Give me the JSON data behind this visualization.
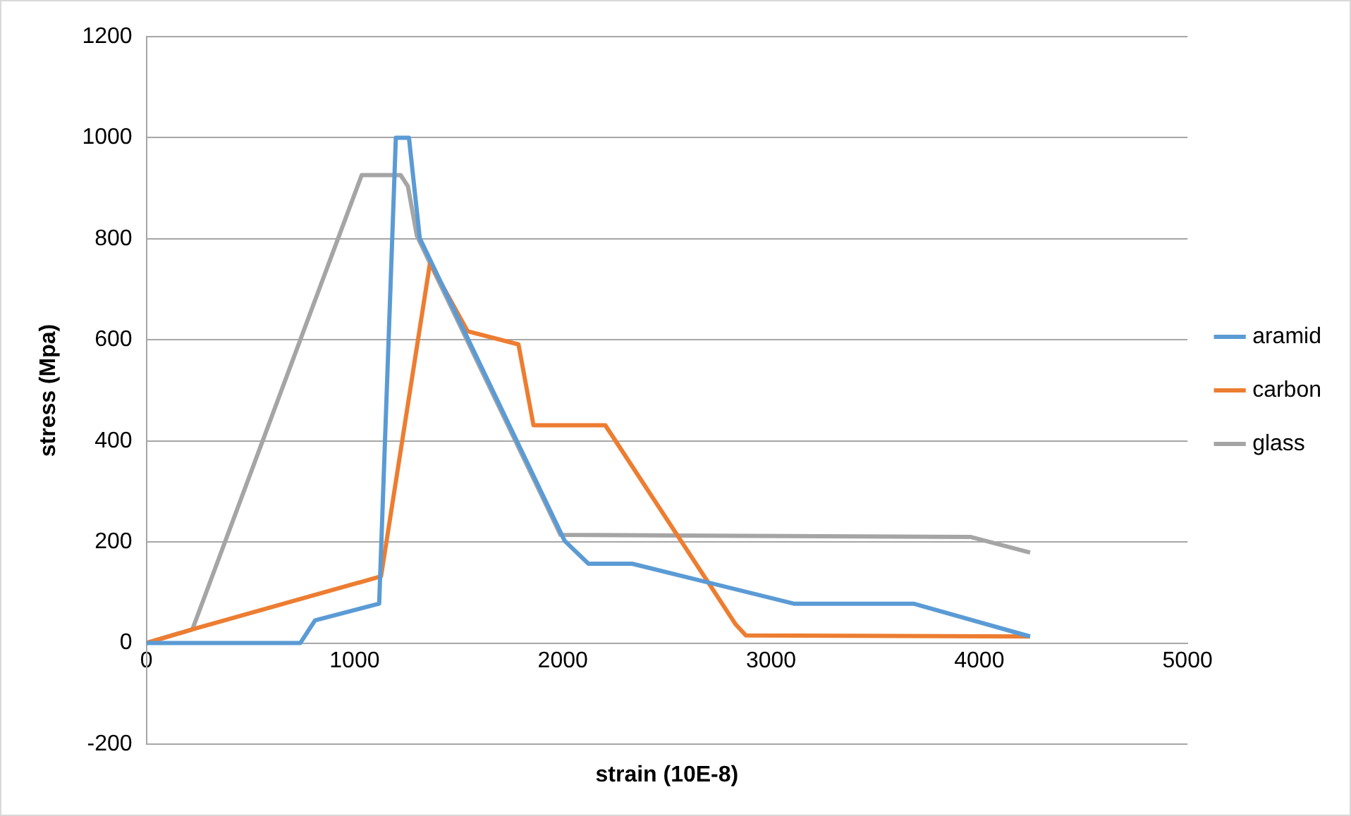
{
  "chart_data": {
    "type": "line",
    "xlabel": "strain (10E-8)",
    "ylabel": "stress (Mpa)",
    "xlim": [
      0,
      5000
    ],
    "xticks": [
      0,
      1000,
      2000,
      3000,
      4000,
      5000
    ],
    "ylim": [
      -200,
      1200
    ],
    "yticks": [
      -200,
      0,
      200,
      400,
      600,
      800,
      1000,
      1200
    ],
    "grid": "y",
    "legend": "right",
    "marker": "none",
    "line_style": "solid",
    "series": [
      {
        "name": "aramid",
        "color": "#5b9bd5",
        "x": [
          0,
          739,
          810,
          1118,
          1198,
          1261,
          1313,
          2009,
          2123,
          2333,
          3109,
          3684,
          4244
        ],
        "values": [
          0,
          0,
          45,
          78,
          1000,
          1000,
          801,
          202,
          157,
          157,
          78,
          78,
          13
        ]
      },
      {
        "name": "carbon",
        "color": "#ed7d31",
        "x": [
          0,
          221,
          1127,
          1362,
          1543,
          1787,
          1859,
          2204,
          2830,
          2879,
          4244
        ],
        "values": [
          0,
          27,
          132,
          752,
          617,
          591,
          431,
          431,
          37,
          15,
          13
        ]
      },
      {
        "name": "glass",
        "color": "#a5a5a5",
        "x": [
          0,
          221,
          1034,
          1221,
          1256,
          1299,
          1989,
          3957,
          4244
        ],
        "values": [
          0,
          27,
          926,
          926,
          904,
          806,
          214,
          210,
          179
        ]
      }
    ]
  }
}
